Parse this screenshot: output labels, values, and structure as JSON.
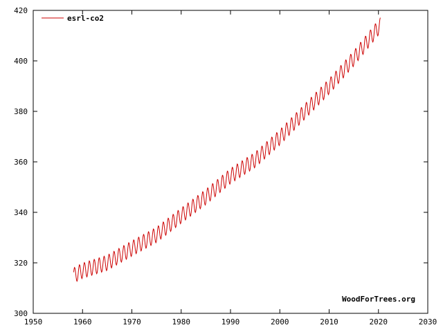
{
  "chart_data": {
    "type": "line",
    "title": "",
    "xlabel": "",
    "ylabel": "",
    "xlim": [
      1950,
      2030
    ],
    "ylim": [
      300,
      420
    ],
    "xticks": [
      "1950",
      "1960",
      "1970",
      "1980",
      "1990",
      "2000",
      "2010",
      "2020",
      "2030"
    ],
    "yticks": [
      "300",
      "320",
      "340",
      "360",
      "380",
      "400",
      "420"
    ],
    "grid": false,
    "legend_position": "top-left",
    "credit": "WoodForTrees.org",
    "series": [
      {
        "name": "esrl-co2",
        "color": "#cc0000",
        "seasonal_amplitude_ppm": 3,
        "x": [
          1958.2,
          1960,
          1965,
          1970,
          1975,
          1980,
          1985,
          1990,
          1995,
          2000,
          2005,
          2010,
          2015,
          2020.4
        ],
        "y": [
          315.0,
          316.9,
          320.0,
          325.7,
          331.1,
          338.7,
          346.1,
          354.4,
          360.8,
          369.7,
          379.8,
          389.9,
          401.0,
          414.2
        ]
      }
    ]
  }
}
